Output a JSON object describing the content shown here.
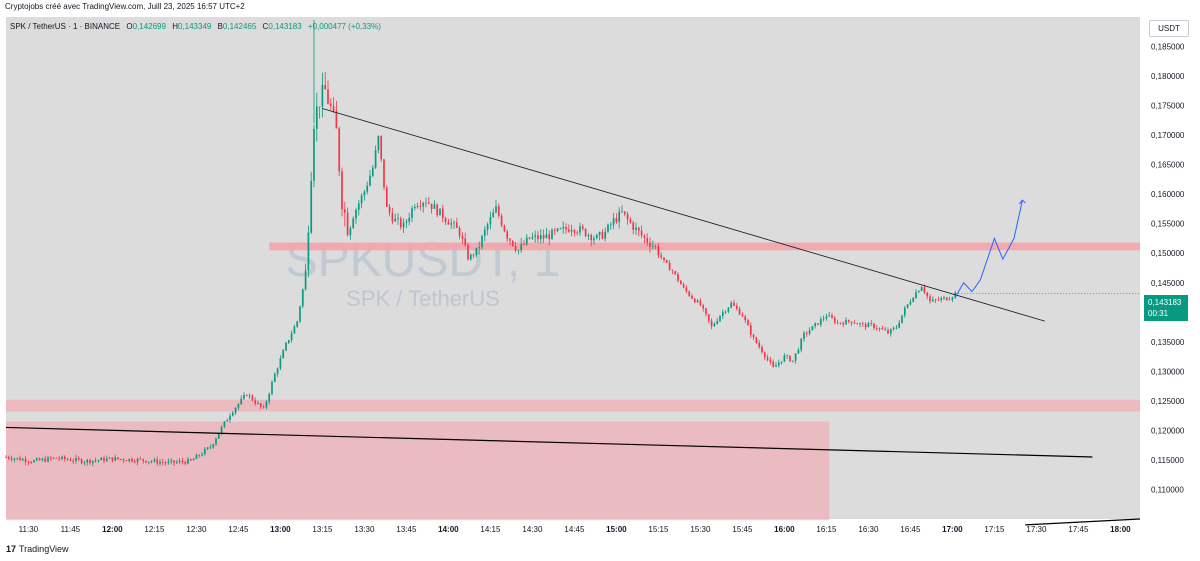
{
  "header": {
    "credit": "Cryptojobs créé avec TradingView.com, Juill 23, 2025 16:57 UTC+2"
  },
  "legend": {
    "symbol": "SPK / TetherUS · 1 · BINANCE",
    "open_label": "O",
    "open": "0,142699",
    "high_label": "H",
    "high": "0,143349",
    "low_label": "B",
    "low": "0,142465",
    "close_label": "C",
    "close": "0,143183",
    "change": "+0,000477 (+0,33%)"
  },
  "currency": "USDT",
  "price_tag": {
    "price": "0,143183",
    "countdown": "00:31",
    "color": "#089981"
  },
  "watermark": {
    "ticker": "SPKUSDT, 1",
    "name": "SPK / TetherUS"
  },
  "footer": {
    "logo": "17",
    "brand": "TradingView"
  },
  "colors": {
    "up": "#089981",
    "down": "#f23645",
    "zone": "#f5a3ab",
    "projection": "#2962ff",
    "trendline": "#000000",
    "plot_bg": "#dcdcdc"
  },
  "chart_data": {
    "type": "candlestick",
    "title": "",
    "ylim": [
      0.105,
      0.19
    ],
    "y_ticks": [
      "0,110000",
      "0,115000",
      "0,120000",
      "0,125000",
      "0,130000",
      "0,135000",
      "0,140000",
      "0,145000",
      "0,150000",
      "0,155000",
      "0,160000",
      "0,165000",
      "0,170000",
      "0,175000",
      "0,180000",
      "0,185000"
    ],
    "y_tick_values": [
      0.11,
      0.115,
      0.12,
      0.125,
      0.13,
      0.135,
      0.14,
      0.145,
      0.15,
      0.155,
      0.16,
      0.165,
      0.17,
      0.175,
      0.18,
      0.185
    ],
    "x_ticks": [
      {
        "t": "11:30",
        "m": 690,
        "bold": false
      },
      {
        "t": "11:45",
        "m": 705,
        "bold": false
      },
      {
        "t": "12:00",
        "m": 720,
        "bold": true
      },
      {
        "t": "12:15",
        "m": 735,
        "bold": false
      },
      {
        "t": "12:30",
        "m": 750,
        "bold": false
      },
      {
        "t": "12:45",
        "m": 765,
        "bold": false
      },
      {
        "t": "13:00",
        "m": 780,
        "bold": true
      },
      {
        "t": "13:15",
        "m": 795,
        "bold": false
      },
      {
        "t": "13:30",
        "m": 810,
        "bold": false
      },
      {
        "t": "13:45",
        "m": 825,
        "bold": false
      },
      {
        "t": "14:00",
        "m": 840,
        "bold": true
      },
      {
        "t": "14:15",
        "m": 855,
        "bold": false
      },
      {
        "t": "14:30",
        "m": 870,
        "bold": false
      },
      {
        "t": "14:45",
        "m": 885,
        "bold": false
      },
      {
        "t": "15:00",
        "m": 900,
        "bold": true
      },
      {
        "t": "15:15",
        "m": 915,
        "bold": false
      },
      {
        "t": "15:30",
        "m": 930,
        "bold": false
      },
      {
        "t": "15:45",
        "m": 945,
        "bold": false
      },
      {
        "t": "16:00",
        "m": 960,
        "bold": true
      },
      {
        "t": "16:15",
        "m": 975,
        "bold": false
      },
      {
        "t": "16:30",
        "m": 990,
        "bold": false
      },
      {
        "t": "16:45",
        "m": 1005,
        "bold": false
      },
      {
        "t": "17:00",
        "m": 1020,
        "bold": true
      },
      {
        "t": "17:15",
        "m": 1035,
        "bold": false
      },
      {
        "t": "17:30",
        "m": 1050,
        "bold": false
      },
      {
        "t": "17:45",
        "m": 1065,
        "bold": false
      },
      {
        "t": "18:00",
        "m": 1080,
        "bold": true
      }
    ],
    "x_start_minute": 682,
    "x_end_minute": 1087,
    "price_path": [
      [
        682,
        0.1155
      ],
      [
        692,
        0.1148
      ],
      [
        700,
        0.1153
      ],
      [
        710,
        0.1148
      ],
      [
        720,
        0.1152
      ],
      [
        730,
        0.115
      ],
      [
        740,
        0.1145
      ],
      [
        748,
        0.1148
      ],
      [
        755,
        0.1172
      ],
      [
        762,
        0.1228
      ],
      [
        765,
        0.1245
      ],
      [
        768,
        0.1262
      ],
      [
        771,
        0.1248
      ],
      [
        774,
        0.1235
      ],
      [
        778,
        0.1295
      ],
      [
        782,
        0.1345
      ],
      [
        786,
        0.1385
      ],
      [
        789,
        0.1465
      ],
      [
        791,
        0.164
      ],
      [
        792,
        0.1725
      ],
      [
        794,
        0.176
      ],
      [
        796,
        0.1775
      ],
      [
        798,
        0.1745
      ],
      [
        800,
        0.1705
      ],
      [
        802,
        0.159
      ],
      [
        804,
        0.1545
      ],
      [
        807,
        0.1575
      ],
      [
        810,
        0.1605
      ],
      [
        813,
        0.1645
      ],
      [
        815,
        0.1695
      ],
      [
        818,
        0.1575
      ],
      [
        821,
        0.1555
      ],
      [
        824,
        0.1545
      ],
      [
        828,
        0.1585
      ],
      [
        832,
        0.159
      ],
      [
        836,
        0.1572
      ],
      [
        840,
        0.1555
      ],
      [
        844,
        0.1535
      ],
      [
        847,
        0.1492
      ],
      [
        850,
        0.1502
      ],
      [
        854,
        0.1548
      ],
      [
        857,
        0.1575
      ],
      [
        861,
        0.153
      ],
      [
        865,
        0.1505
      ],
      [
        869,
        0.1525
      ],
      [
        874,
        0.1527
      ],
      [
        879,
        0.1535
      ],
      [
        884,
        0.1545
      ],
      [
        889,
        0.1535
      ],
      [
        893,
        0.1525
      ],
      [
        896,
        0.1535
      ],
      [
        899,
        0.1555
      ],
      [
        902,
        0.1568
      ],
      [
        906,
        0.1545
      ],
      [
        910,
        0.1525
      ],
      [
        914,
        0.151
      ],
      [
        917,
        0.1485
      ],
      [
        920,
        0.147
      ],
      [
        924,
        0.144
      ],
      [
        927,
        0.1425
      ],
      [
        930,
        0.1412
      ],
      [
        934,
        0.1375
      ],
      [
        937,
        0.1395
      ],
      [
        941,
        0.1415
      ],
      [
        945,
        0.1395
      ],
      [
        949,
        0.1355
      ],
      [
        952,
        0.1335
      ],
      [
        956,
        0.1305
      ],
      [
        960,
        0.1325
      ],
      [
        963,
        0.1318
      ],
      [
        967,
        0.1362
      ],
      [
        971,
        0.1378
      ],
      [
        975,
        0.1395
      ],
      [
        979,
        0.1382
      ],
      [
        984,
        0.1385
      ],
      [
        988,
        0.1378
      ],
      [
        991,
        0.1378
      ],
      [
        994,
        0.1372
      ],
      [
        997,
        0.1365
      ],
      [
        1000,
        0.1375
      ],
      [
        1003,
        0.1405
      ],
      [
        1006,
        0.1428
      ],
      [
        1009,
        0.1445
      ],
      [
        1012,
        0.1418
      ],
      [
        1016,
        0.1422
      ],
      [
        1019,
        0.1425
      ],
      [
        1021,
        0.1432
      ]
    ],
    "projection": [
      [
        1021,
        0.1425
      ],
      [
        1024,
        0.145
      ],
      [
        1027,
        0.1435
      ],
      [
        1030,
        0.1455
      ],
      [
        1035,
        0.1525
      ],
      [
        1038,
        0.149
      ],
      [
        1042,
        0.1525
      ],
      [
        1045,
        0.159
      ]
    ],
    "resistance_zone": [
      0.1505,
      0.1518
    ],
    "resistance_zone_span": [
      776,
      1087
    ],
    "support_zone_upper": [
      0.1232,
      0.1252
    ],
    "support_zone_upper_span": [
      682,
      1087
    ],
    "support_zone_lower": [
      0.1048,
      0.1215
    ],
    "support_zone_lower_span": [
      682,
      976
    ],
    "trendlines": [
      {
        "from": [
          795,
          0.1745
        ],
        "to": [
          1053,
          0.1385
        ],
        "color": "#131722",
        "width": 0.8
      },
      {
        "from": [
          682,
          0.1205
        ],
        "to": [
          1070,
          0.1155
        ],
        "color": "#000000",
        "width": 1.2
      },
      {
        "from": [
          1046,
          0.104
        ],
        "to": [
          1087,
          0.105
        ],
        "color": "#000000",
        "width": 1.2
      }
    ],
    "last_price": 0.143183
  }
}
